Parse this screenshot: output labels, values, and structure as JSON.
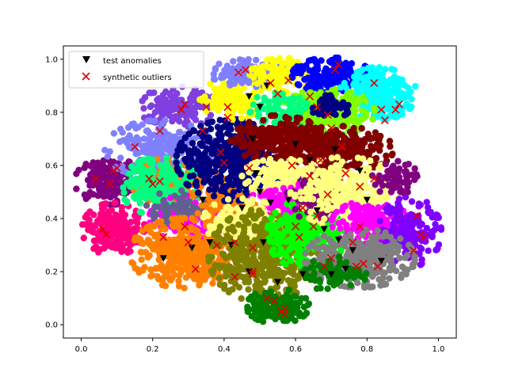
{
  "chart_data": {
    "type": "scatter",
    "title": "",
    "xlabel": "",
    "ylabel": "",
    "xlim": [
      -0.05,
      1.05
    ],
    "ylim": [
      -0.05,
      1.05
    ],
    "xticks": [
      0.0,
      0.2,
      0.4,
      0.6,
      0.8,
      1.0
    ],
    "yticks": [
      0.0,
      0.2,
      0.4,
      0.6,
      0.8,
      1.0
    ],
    "xtick_labels": [
      "0.0",
      "0.2",
      "0.4",
      "0.6",
      "0.8",
      "1.0"
    ],
    "ytick_labels": [
      "0.0",
      "0.2",
      "0.4",
      "0.6",
      "0.8",
      "1.0"
    ],
    "grid": false,
    "legend": {
      "placement": "top-left",
      "entries": [
        {
          "label": "test anomalies",
          "marker": "triangle-down",
          "color": "#000000"
        },
        {
          "label": "synthetic outliers",
          "marker": "x",
          "color": "#dd0000"
        }
      ]
    },
    "clusters": [
      {
        "color": "#800080",
        "center": [
          0.08,
          0.54
        ],
        "spread": [
          0.045,
          0.04
        ],
        "n": 180
      },
      {
        "color": "#ff0080",
        "center": [
          0.09,
          0.36
        ],
        "spread": [
          0.04,
          0.045
        ],
        "n": 220
      },
      {
        "color": "#8040e0",
        "center": [
          0.27,
          0.82
        ],
        "spread": [
          0.05,
          0.035
        ],
        "n": 140
      },
      {
        "color": "#8080ff",
        "center": [
          0.22,
          0.66
        ],
        "spread": [
          0.07,
          0.05
        ],
        "n": 240
      },
      {
        "color": "#ff8000",
        "center": [
          0.25,
          0.54
        ],
        "spread": [
          0.05,
          0.04
        ],
        "n": 140
      },
      {
        "color": "#00ff80",
        "center": [
          0.22,
          0.52
        ],
        "spread": [
          0.05,
          0.05
        ],
        "n": 200
      },
      {
        "color": "#ff00ff",
        "center": [
          0.3,
          0.4
        ],
        "spread": [
          0.05,
          0.04
        ],
        "n": 150
      },
      {
        "color": "#606090",
        "center": [
          0.27,
          0.44
        ],
        "spread": [
          0.04,
          0.03
        ],
        "n": 60
      },
      {
        "color": "#ff8000",
        "center": [
          0.29,
          0.27
        ],
        "spread": [
          0.07,
          0.06
        ],
        "n": 420
      },
      {
        "color": "#ff8000",
        "center": [
          0.42,
          0.46
        ],
        "spread": [
          0.05,
          0.05
        ],
        "n": 140
      },
      {
        "color": "#000080",
        "center": [
          0.42,
          0.62
        ],
        "spread": [
          0.07,
          0.07
        ],
        "n": 420
      },
      {
        "color": "#ffff00",
        "center": [
          0.42,
          0.85
        ],
        "spread": [
          0.04,
          0.035
        ],
        "n": 110
      },
      {
        "color": "#8080ff",
        "center": [
          0.47,
          0.95
        ],
        "spread": [
          0.05,
          0.025
        ],
        "n": 120
      },
      {
        "color": "#ffff00",
        "center": [
          0.56,
          0.94
        ],
        "spread": [
          0.04,
          0.03
        ],
        "n": 90
      },
      {
        "color": "#0000ff",
        "center": [
          0.7,
          0.94
        ],
        "spread": [
          0.05,
          0.03
        ],
        "n": 170
      },
      {
        "color": "#00ffff",
        "center": [
          0.83,
          0.87
        ],
        "spread": [
          0.05,
          0.045
        ],
        "n": 220
      },
      {
        "color": "#80ff00",
        "center": [
          0.69,
          0.8
        ],
        "spread": [
          0.06,
          0.04
        ],
        "n": 260
      },
      {
        "color": "#00ff80",
        "center": [
          0.56,
          0.8
        ],
        "spread": [
          0.04,
          0.04
        ],
        "n": 90
      },
      {
        "color": "#800000",
        "center": [
          0.55,
          0.7
        ],
        "spread": [
          0.06,
          0.04
        ],
        "n": 260
      },
      {
        "color": "#800000",
        "center": [
          0.72,
          0.66
        ],
        "spread": [
          0.07,
          0.04
        ],
        "n": 300
      },
      {
        "color": "#000080",
        "center": [
          0.69,
          0.82
        ],
        "spread": [
          0.03,
          0.02
        ],
        "n": 60
      },
      {
        "color": "#ffff80",
        "center": [
          0.56,
          0.56
        ],
        "spread": [
          0.05,
          0.03
        ],
        "n": 140
      },
      {
        "color": "#ff00ff",
        "center": [
          0.58,
          0.45
        ],
        "spread": [
          0.05,
          0.04
        ],
        "n": 140
      },
      {
        "color": "#ffff80",
        "center": [
          0.45,
          0.39
        ],
        "spread": [
          0.05,
          0.04
        ],
        "n": 160
      },
      {
        "color": "#808000",
        "center": [
          0.51,
          0.26
        ],
        "spread": [
          0.07,
          0.08
        ],
        "n": 420
      },
      {
        "color": "#008000",
        "center": [
          0.55,
          0.07
        ],
        "spread": [
          0.04,
          0.03
        ],
        "n": 160
      },
      {
        "color": "#00ff00",
        "center": [
          0.63,
          0.34
        ],
        "spread": [
          0.05,
          0.06
        ],
        "n": 260
      },
      {
        "color": "#800080",
        "center": [
          0.66,
          0.48
        ],
        "spread": [
          0.04,
          0.04
        ],
        "n": 100
      },
      {
        "color": "#ffff80",
        "center": [
          0.74,
          0.5
        ],
        "spread": [
          0.07,
          0.06
        ],
        "n": 280
      },
      {
        "color": "#ff00ff",
        "center": [
          0.81,
          0.38
        ],
        "spread": [
          0.05,
          0.04
        ],
        "n": 160
      },
      {
        "color": "#8000ff",
        "center": [
          0.92,
          0.35
        ],
        "spread": [
          0.04,
          0.06
        ],
        "n": 180
      },
      {
        "color": "#808080",
        "center": [
          0.78,
          0.25
        ],
        "spread": [
          0.07,
          0.05
        ],
        "n": 320
      },
      {
        "color": "#008000",
        "center": [
          0.71,
          0.19
        ],
        "spread": [
          0.04,
          0.03
        ],
        "n": 80
      },
      {
        "color": "#800080",
        "center": [
          0.88,
          0.55
        ],
        "spread": [
          0.03,
          0.03
        ],
        "n": 60
      }
    ],
    "test_anomalies": [
      [
        0.23,
        0.25
      ],
      [
        0.31,
        0.29
      ],
      [
        0.36,
        0.31
      ],
      [
        0.49,
        0.57
      ],
      [
        0.53,
        0.46
      ],
      [
        0.58,
        0.47
      ],
      [
        0.66,
        0.43
      ],
      [
        0.68,
        0.36
      ],
      [
        0.72,
        0.32
      ],
      [
        0.74,
        0.21
      ],
      [
        0.7,
        0.19
      ],
      [
        0.62,
        0.19
      ],
      [
        0.55,
        0.16
      ],
      [
        0.47,
        0.2
      ],
      [
        0.51,
        0.31
      ],
      [
        0.45,
        0.44
      ],
      [
        0.42,
        0.3
      ],
      [
        0.34,
        0.47
      ],
      [
        0.48,
        0.7
      ],
      [
        0.5,
        0.82
      ],
      [
        0.47,
        0.86
      ],
      [
        0.52,
        0.9
      ],
      [
        0.6,
        0.68
      ],
      [
        0.64,
        0.62
      ],
      [
        0.71,
        0.66
      ],
      [
        0.78,
        0.58
      ],
      [
        0.8,
        0.47
      ],
      [
        0.76,
        0.28
      ],
      [
        0.84,
        0.24
      ],
      [
        0.5,
        0.5
      ]
    ],
    "synthetic_outliers": [
      [
        0.04,
        0.55
      ],
      [
        0.06,
        0.36
      ],
      [
        0.07,
        0.34
      ],
      [
        0.08,
        0.53
      ],
      [
        0.09,
        0.58
      ],
      [
        0.1,
        0.59
      ],
      [
        0.15,
        0.67
      ],
      [
        0.19,
        0.55
      ],
      [
        0.2,
        0.53
      ],
      [
        0.22,
        0.54
      ],
      [
        0.22,
        0.73
      ],
      [
        0.23,
        0.33
      ],
      [
        0.28,
        0.81
      ],
      [
        0.29,
        0.83
      ],
      [
        0.29,
        0.37
      ],
      [
        0.3,
        0.31
      ],
      [
        0.32,
        0.21
      ],
      [
        0.34,
        0.73
      ],
      [
        0.35,
        0.82
      ],
      [
        0.38,
        0.3
      ],
      [
        0.39,
        0.65
      ],
      [
        0.4,
        0.61
      ],
      [
        0.41,
        0.82
      ],
      [
        0.41,
        0.78
      ],
      [
        0.43,
        0.31
      ],
      [
        0.43,
        0.18
      ],
      [
        0.44,
        0.95
      ],
      [
        0.46,
        0.96
      ],
      [
        0.47,
        0.59
      ],
      [
        0.48,
        0.29
      ],
      [
        0.48,
        0.2
      ],
      [
        0.48,
        0.19
      ],
      [
        0.52,
        0.1
      ],
      [
        0.53,
        0.91
      ],
      [
        0.54,
        0.09
      ],
      [
        0.55,
        0.87
      ],
      [
        0.56,
        0.05
      ],
      [
        0.57,
        0.06
      ],
      [
        0.57,
        0.04
      ],
      [
        0.58,
        0.92
      ],
      [
        0.59,
        0.6
      ],
      [
        0.6,
        0.37
      ],
      [
        0.61,
        0.33
      ],
      [
        0.62,
        0.44
      ],
      [
        0.64,
        0.56
      ],
      [
        0.64,
        0.86
      ],
      [
        0.65,
        0.37
      ],
      [
        0.66,
        0.41
      ],
      [
        0.66,
        0.82
      ],
      [
        0.67,
        0.62
      ],
      [
        0.68,
        0.22
      ],
      [
        0.69,
        0.49
      ],
      [
        0.69,
        0.79
      ],
      [
        0.7,
        0.25
      ],
      [
        0.7,
        0.74
      ],
      [
        0.71,
        0.96
      ],
      [
        0.72,
        0.98
      ],
      [
        0.73,
        0.67
      ],
      [
        0.74,
        0.57
      ],
      [
        0.76,
        0.31
      ],
      [
        0.77,
        0.22
      ],
      [
        0.78,
        0.52
      ],
      [
        0.78,
        0.37
      ],
      [
        0.79,
        0.23
      ],
      [
        0.82,
        0.55
      ],
      [
        0.82,
        0.91
      ],
      [
        0.83,
        0.22
      ],
      [
        0.84,
        0.81
      ],
      [
        0.85,
        0.77
      ],
      [
        0.88,
        0.81
      ],
      [
        0.89,
        0.83
      ],
      [
        0.93,
        0.28
      ],
      [
        0.94,
        0.41
      ],
      [
        0.95,
        0.34
      ],
      [
        0.96,
        0.33
      ]
    ]
  }
}
